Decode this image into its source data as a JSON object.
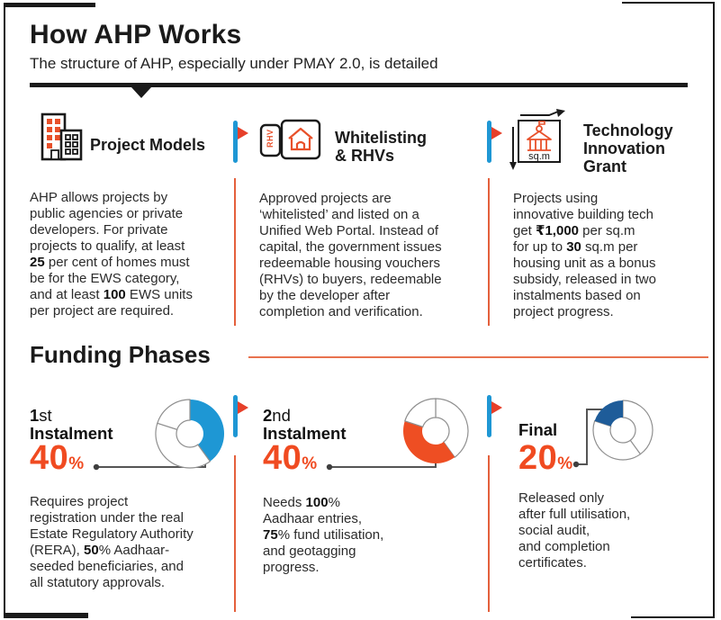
{
  "colors": {
    "ink": "#1a1a1a",
    "body_text": "#2b2b2b",
    "accent_orange": "#ee4e23",
    "percent_orange": "#f04b21",
    "line_orange": "#e4603c",
    "flag_red": "#e6402a",
    "accent_blue": "#1e97d4",
    "dark_blue": "#1e5c99",
    "donut_outline_gray": "#8f8f8f",
    "connector_gray": "#555555"
  },
  "header": {
    "title": "How AHP Works",
    "subtitle": "The structure of AHP, especially under PMAY 2.0, is detailed"
  },
  "features": [
    {
      "icon": "buildings-icon",
      "title": "Project Models",
      "body": [
        {
          "t": "AHP allows projects by\npublic agencies or private\ndevelopers. For private\nprojects to qualify, at least\n"
        },
        {
          "t": "25",
          "b": true
        },
        {
          "t": " per cent of homes must\nbe for the EWS category,\nand at least "
        },
        {
          "t": "100",
          "b": true
        },
        {
          "t": " EWS units\nper project are required."
        }
      ]
    },
    {
      "icon": "rhv-ticket-icon",
      "icon_label": "RHV",
      "title": "Whitelisting\n& RHVs",
      "body": [
        {
          "t": "Approved projects are\n‘whitelisted’ and listed on a\nUnified Web Portal. Instead of\ncapital, the government issues\nredeemable housing vouchers\n(RHVs) to buyers, redeemable\nby the developer after\ncompletion and verification."
        }
      ]
    },
    {
      "icon": "sqm-measure-icon",
      "icon_label": "sq.m",
      "title": "Technology\nInnovation\nGrant",
      "body": [
        {
          "t": "Projects using\ninnovative building tech\nget "
        },
        {
          "t": "₹1,000",
          "b": true
        },
        {
          "t": " per sq.m\nfor up to "
        },
        {
          "t": "30",
          "b": true
        },
        {
          "t": " sq.m per\nhousing unit as a bonus\nsubsidy, released in two\ninstalments based on\nproject progress."
        }
      ]
    }
  ],
  "funding": {
    "title": "Funding Phases",
    "phases": [
      {
        "label": [
          {
            "t": "1",
            "b": true
          },
          {
            "t": "st\n"
          },
          {
            "t": "Instalment",
            "b": true
          }
        ],
        "percent": "40",
        "percent_sign": "%",
        "body": [
          {
            "t": "Requires project\nregistration under the real\nEstate Regulatory Authority\n(RERA), "
          },
          {
            "t": "50",
            "b": true
          },
          {
            "t": "% Aadhaar-\nseeded beneficiaries, and\nall statutory approvals."
          }
        ]
      },
      {
        "label": [
          {
            "t": "2",
            "b": true
          },
          {
            "t": "nd\n"
          },
          {
            "t": "Instalment",
            "b": true
          }
        ],
        "percent": "40",
        "percent_sign": "%",
        "body": [
          {
            "t": "Needs "
          },
          {
            "t": "100",
            "b": true
          },
          {
            "t": "%\nAadhaar entries,\n"
          },
          {
            "t": "75",
            "b": true
          },
          {
            "t": "% fund utilisation,\nand geotagging\nprogress."
          }
        ]
      },
      {
        "label": [
          {
            "t": "Final",
            "b": true
          }
        ],
        "percent": "20",
        "percent_sign": "%",
        "body": [
          {
            "t": "Released only\nafter full utilisation,\nsocial audit,\nand completion\ncertificates."
          }
        ]
      }
    ]
  },
  "chart_data": [
    {
      "type": "pie",
      "donut": true,
      "title": "1st Instalment",
      "unit": "%",
      "highlight_value": 40,
      "slices": [
        {
          "label": "1st instalment",
          "value": 40,
          "color": "#1e97d4",
          "filled": true
        },
        {
          "label": "2nd instalment",
          "value": 40,
          "color": "#ffffff",
          "filled": false
        },
        {
          "label": "final",
          "value": 20,
          "color": "#ffffff",
          "filled": false
        }
      ]
    },
    {
      "type": "pie",
      "donut": true,
      "title": "2nd Instalment",
      "unit": "%",
      "highlight_value": 40,
      "slices": [
        {
          "label": "1st instalment",
          "value": 40,
          "color": "#ffffff",
          "filled": false
        },
        {
          "label": "2nd instalment",
          "value": 40,
          "color": "#ee4e23",
          "filled": true
        },
        {
          "label": "final",
          "value": 20,
          "color": "#ffffff",
          "filled": false
        }
      ]
    },
    {
      "type": "pie",
      "donut": true,
      "title": "Final",
      "unit": "%",
      "highlight_value": 20,
      "slices": [
        {
          "label": "1st instalment",
          "value": 40,
          "color": "#ffffff",
          "filled": false
        },
        {
          "label": "2nd instalment",
          "value": 40,
          "color": "#ffffff",
          "filled": false
        },
        {
          "label": "final",
          "value": 20,
          "color": "#1e5c99",
          "filled": true
        }
      ]
    }
  ]
}
